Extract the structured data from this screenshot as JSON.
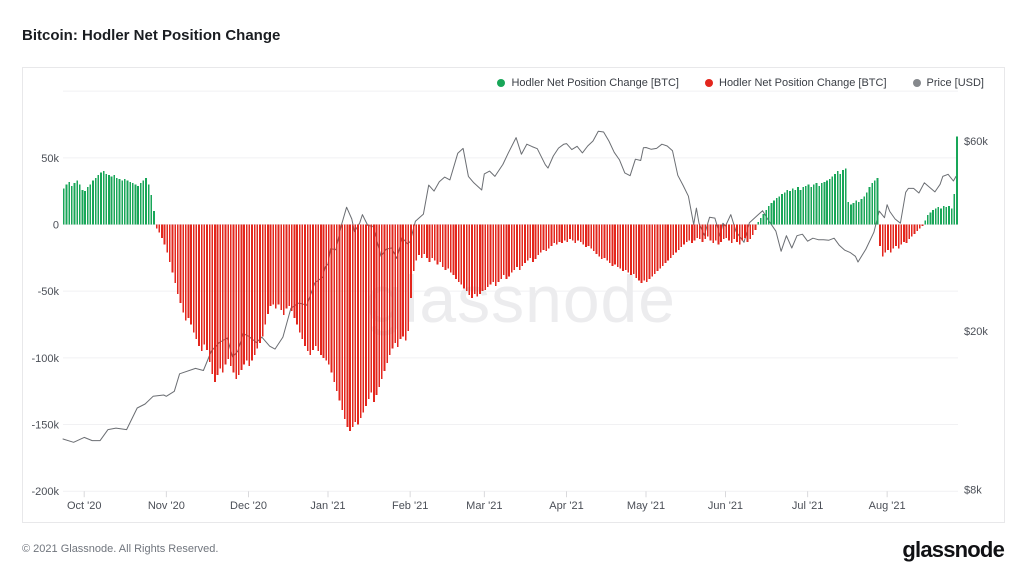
{
  "page": {
    "title": "Bitcoin: Hodler Net Position Change",
    "footer_copyright": "© 2021 Glassnode. All Rights Reserved.",
    "brand_logo": "glassnode",
    "watermark": "glassnode"
  },
  "legend": [
    {
      "label": "Hodler Net Position Change [BTC]",
      "color": "#18a658"
    },
    {
      "label": "Hodler Net Position Change [BTC]",
      "color": "#e3261d"
    },
    {
      "label": "Price [USD]",
      "color": "#85888c"
    }
  ],
  "chart_data": {
    "type": "composite",
    "title": "Bitcoin: Hodler Net Position Change",
    "colors": {
      "bar_positive": "#18a658",
      "bar_negative": "#e3261d",
      "price_line": "#6b6e73",
      "grid": "#f1f1f3",
      "axis_text": "#4b4f57",
      "month_tick": "#d9d9dc"
    },
    "y_axis_left": {
      "unit": "BTC",
      "gridlines": [
        100,
        50,
        0,
        -50,
        -100,
        -150,
        -200
      ],
      "ticks": [
        {
          "label": "50k",
          "value": 50
        },
        {
          "label": "0",
          "value": 0
        },
        {
          "label": "-50k",
          "value": -50
        },
        {
          "label": "-100k",
          "value": -100
        },
        {
          "label": "-150k",
          "value": -150
        },
        {
          "label": "-200k",
          "value": -200
        }
      ],
      "range_k": [
        -210,
        110
      ]
    },
    "y_axis_right": {
      "unit": "USD",
      "scale": "log",
      "ticks": [
        {
          "label": "$60k",
          "value": 60
        },
        {
          "label": "$20k",
          "value": 20
        },
        {
          "label": "$8k",
          "value": 8
        }
      ]
    },
    "x_axis": {
      "months": [
        {
          "label": "Oct '20",
          "day": 8
        },
        {
          "label": "Nov '20",
          "day": 39
        },
        {
          "label": "Dec '20",
          "day": 70
        },
        {
          "label": "Jan '21",
          "day": 100
        },
        {
          "label": "Feb '21",
          "day": 131
        },
        {
          "label": "Mar '21",
          "day": 159
        },
        {
          "label": "Apr '21",
          "day": 190
        },
        {
          "label": "May '21",
          "day": 220
        },
        {
          "label": "Jun '21",
          "day": 250
        },
        {
          "label": "Jul '21",
          "day": 281
        },
        {
          "label": "Aug '21",
          "day": 311
        }
      ]
    },
    "hodler_net_position_change_btc": {
      "unit": "thousand BTC per day, approximate",
      "values": [
        27,
        30,
        32,
        29,
        31,
        33,
        30,
        26,
        25,
        28,
        30,
        33,
        35,
        37,
        39,
        40,
        38,
        37,
        36,
        37,
        35,
        34,
        33,
        34,
        33,
        32,
        31,
        30,
        29,
        31,
        33,
        35,
        30,
        22,
        10,
        -3,
        -6,
        -10,
        -15,
        -21,
        -28,
        -36,
        -44,
        -52,
        -59,
        -66,
        -72,
        -70,
        -75,
        -81,
        -86,
        -91,
        -95,
        -90,
        -94,
        -103,
        -112,
        -118,
        -113,
        -108,
        -111,
        -105,
        -101,
        -106,
        -111,
        -116,
        -113,
        -109,
        -105,
        -102,
        -106,
        -102,
        -98,
        -93,
        -89,
        -84,
        -75,
        -67,
        -61,
        -60,
        -63,
        -60,
        -64,
        -68,
        -63,
        -61,
        -65,
        -70,
        -75,
        -81,
        -86,
        -91,
        -95,
        -98,
        -94,
        -91,
        -95,
        -98,
        -100,
        -102,
        -105,
        -111,
        -118,
        -125,
        -132,
        -139,
        -146,
        -152,
        -155,
        -152,
        -148,
        -150,
        -145,
        -141,
        -136,
        -131,
        -126,
        -133,
        -128,
        -122,
        -116,
        -110,
        -104,
        -98,
        -93,
        -89,
        -92,
        -86,
        -84,
        -87,
        -80,
        -55,
        -35,
        -27,
        -23,
        -25,
        -22,
        -25,
        -28,
        -25,
        -27,
        -30,
        -28,
        -32,
        -34,
        -33,
        -36,
        -38,
        -41,
        -43,
        -45,
        -48,
        -50,
        -53,
        -55,
        -52,
        -54,
        -52,
        -50,
        -49,
        -47,
        -45,
        -43,
        -46,
        -43,
        -41,
        -38,
        -41,
        -39,
        -36,
        -34,
        -32,
        -34,
        -31,
        -29,
        -27,
        -25,
        -28,
        -26,
        -23,
        -21,
        -19,
        -20,
        -18,
        -16,
        -14,
        -15,
        -13,
        -14,
        -12,
        -13,
        -11,
        -12,
        -14,
        -12,
        -13,
        -15,
        -17,
        -16,
        -18,
        -20,
        -22,
        -24,
        -26,
        -25,
        -27,
        -29,
        -31,
        -30,
        -32,
        -33,
        -35,
        -34,
        -36,
        -38,
        -37,
        -40,
        -42,
        -44,
        -42,
        -43,
        -41,
        -39,
        -37,
        -35,
        -33,
        -31,
        -29,
        -27,
        -25,
        -23,
        -21,
        -19,
        -17,
        -15,
        -13,
        -12,
        -14,
        -12,
        -10,
        -11,
        -13,
        -11,
        -9,
        -12,
        -14,
        -12,
        -15,
        -13,
        -11,
        -10,
        -12,
        -14,
        -11,
        -13,
        -15,
        -12,
        -10,
        -13,
        -11,
        -8,
        -4,
        2,
        5,
        8,
        11,
        14,
        16,
        18,
        20,
        21,
        23,
        24,
        26,
        25,
        27,
        26,
        28,
        26,
        28,
        29,
        30,
        28,
        30,
        31,
        29,
        31,
        32,
        33,
        34,
        36,
        38,
        40,
        38,
        41,
        42,
        17,
        15,
        16,
        18,
        17,
        19,
        21,
        24,
        28,
        31,
        33,
        35,
        -16,
        -24,
        -21,
        -19,
        -21,
        -18,
        -16,
        -18,
        -15,
        -13,
        -14,
        -11,
        -9,
        -7,
        -5,
        -3,
        -1,
        3,
        7,
        9,
        11,
        12,
        13,
        12,
        14,
        13,
        14,
        12,
        23,
        66
      ]
    },
    "price_usd": {
      "unit": "thousand USD",
      "points": [
        [
          0,
          10.7
        ],
        [
          4,
          10.5
        ],
        [
          8,
          10.8
        ],
        [
          11,
          10.6
        ],
        [
          14,
          10.6
        ],
        [
          17,
          11.3
        ],
        [
          20,
          11.4
        ],
        [
          24,
          11.3
        ],
        [
          28,
          12.8
        ],
        [
          31,
          13.1
        ],
        [
          34,
          13.7
        ],
        [
          38,
          13.8
        ],
        [
          39,
          13.7
        ],
        [
          42,
          14.1
        ],
        [
          44,
          15.6
        ],
        [
          50,
          16.1
        ],
        [
          53,
          15.9
        ],
        [
          56,
          17.8
        ],
        [
          59,
          18.7
        ],
        [
          62,
          19.2
        ],
        [
          64,
          17.2
        ],
        [
          66,
          17.8
        ],
        [
          68,
          19.7
        ],
        [
          70,
          19.4
        ],
        [
          73,
          18.7
        ],
        [
          75,
          19.3
        ],
        [
          78,
          18.3
        ],
        [
          80,
          18.0
        ],
        [
          83,
          19.3
        ],
        [
          86,
          22.8
        ],
        [
          89,
          23.5
        ],
        [
          92,
          23.2
        ],
        [
          95,
          26.4
        ],
        [
          98,
          27.3
        ],
        [
          99,
          29.0
        ],
        [
          100,
          29.4
        ],
        [
          101,
          32.2
        ],
        [
          103,
          32.0
        ],
        [
          105,
          36.8
        ],
        [
          107,
          40.9
        ],
        [
          109,
          38.2
        ],
        [
          110,
          35.5
        ],
        [
          112,
          37.4
        ],
        [
          113,
          39.2
        ],
        [
          115,
          36.8
        ],
        [
          117,
          36.6
        ],
        [
          120,
          30.8
        ],
        [
          122,
          32.1
        ],
        [
          124,
          32.3
        ],
        [
          126,
          30.4
        ],
        [
          128,
          34.3
        ],
        [
          130,
          33.1
        ],
        [
          131,
          33.5
        ],
        [
          133,
          37.7
        ],
        [
          136,
          39.3
        ],
        [
          138,
          46.5
        ],
        [
          140,
          44.9
        ],
        [
          142,
          47.4
        ],
        [
          144,
          48.7
        ],
        [
          146,
          47.9
        ],
        [
          149,
          55.9
        ],
        [
          151,
          57.5
        ],
        [
          153,
          48.9
        ],
        [
          155,
          47.1
        ],
        [
          158,
          45.2
        ],
        [
          159,
          49.6
        ],
        [
          161,
          50.4
        ],
        [
          163,
          48.9
        ],
        [
          166,
          52.4
        ],
        [
          168,
          55.9
        ],
        [
          171,
          61.2
        ],
        [
          173,
          55.6
        ],
        [
          175,
          58.9
        ],
        [
          177,
          58.1
        ],
        [
          179,
          57.4
        ],
        [
          182,
          52.3
        ],
        [
          183,
          51.3
        ],
        [
          185,
          55.0
        ],
        [
          187,
          57.6
        ],
        [
          189,
          58.9
        ],
        [
          190,
          59.1
        ],
        [
          192,
          57.1
        ],
        [
          194,
          58.2
        ],
        [
          196,
          56.0
        ],
        [
          198,
          58.3
        ],
        [
          200,
          60.0
        ],
        [
          202,
          63.5
        ],
        [
          204,
          63.2
        ],
        [
          206,
          60.0
        ],
        [
          208,
          56.2
        ],
        [
          210,
          53.8
        ],
        [
          212,
          49.9
        ],
        [
          214,
          49.1
        ],
        [
          216,
          54.0
        ],
        [
          218,
          53.6
        ],
        [
          219,
          57.7
        ],
        [
          220,
          57.8
        ],
        [
          222,
          57.2
        ],
        [
          224,
          57.5
        ],
        [
          226,
          58.9
        ],
        [
          228,
          58.3
        ],
        [
          230,
          56.7
        ],
        [
          232,
          49.2
        ],
        [
          234,
          46.4
        ],
        [
          236,
          43.6
        ],
        [
          238,
          37.0
        ],
        [
          239,
          40.7
        ],
        [
          240,
          37.3
        ],
        [
          242,
          34.8
        ],
        [
          244,
          38.6
        ],
        [
          246,
          38.4
        ],
        [
          248,
          34.6
        ],
        [
          249,
          37.3
        ],
        [
          250,
          36.7
        ],
        [
          252,
          39.2
        ],
        [
          254,
          35.5
        ],
        [
          257,
          33.4
        ],
        [
          259,
          37.4
        ],
        [
          262,
          39.0
        ],
        [
          264,
          40.1
        ],
        [
          266,
          38.1
        ],
        [
          269,
          35.6
        ],
        [
          271,
          31.7
        ],
        [
          273,
          34.7
        ],
        [
          275,
          32.3
        ],
        [
          277,
          34.7
        ],
        [
          279,
          35.0
        ],
        [
          281,
          33.6
        ],
        [
          283,
          34.2
        ],
        [
          285,
          33.9
        ],
        [
          287,
          33.9
        ],
        [
          289,
          33.8
        ],
        [
          291,
          34.2
        ],
        [
          293,
          32.8
        ],
        [
          295,
          31.9
        ],
        [
          297,
          31.5
        ],
        [
          299,
          30.8
        ],
        [
          300,
          29.8
        ],
        [
          303,
          32.1
        ],
        [
          305,
          34.3
        ],
        [
          306,
          35.4
        ],
        [
          308,
          40.0
        ],
        [
          310,
          38.5
        ],
        [
          311,
          41.5
        ],
        [
          312,
          39.9
        ],
        [
          314,
          38.2
        ],
        [
          316,
          37.3
        ],
        [
          318,
          44.6
        ],
        [
          319,
          45.6
        ],
        [
          321,
          45.6
        ],
        [
          323,
          44.4
        ],
        [
          325,
          47.1
        ],
        [
          327,
          45.9
        ],
        [
          329,
          44.7
        ],
        [
          331,
          46.7
        ],
        [
          332,
          48.9
        ],
        [
          334,
          49.5
        ],
        [
          336,
          47.6
        ],
        [
          337,
          48.9
        ]
      ]
    }
  }
}
